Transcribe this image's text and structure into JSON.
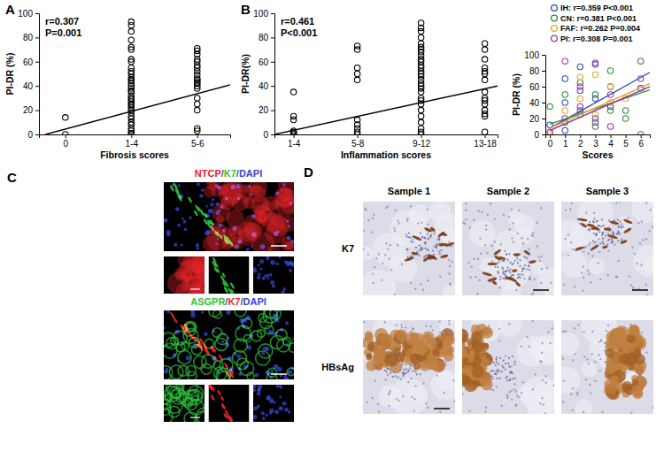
{
  "chart_data": [
    {
      "type": "scatter",
      "title": "A",
      "x_label": "Fibrosis scores",
      "y_label": "PI-DR (%)",
      "annotations": [
        "r=0.307",
        "P=0.001"
      ],
      "xlim": [
        -0.4,
        2.5
      ],
      "xticks": [
        {
          "value": 0,
          "label": "0"
        },
        {
          "value": 1,
          "label": "1-4"
        },
        {
          "value": 2,
          "label": "5-6"
        }
      ],
      "ylim": [
        0,
        100
      ],
      "yticks": [
        0,
        20,
        40,
        60,
        80,
        100
      ],
      "series": [
        {
          "type": "scatter",
          "marker": "open-circle",
          "color": "#000000",
          "x": [
            0,
            0,
            1,
            1,
            1,
            1,
            1,
            1,
            1,
            1,
            1,
            1,
            1,
            1,
            1,
            1,
            1,
            1,
            1,
            1,
            1,
            1,
            1,
            1,
            1,
            1,
            1,
            1,
            1,
            1,
            1,
            1,
            1,
            1,
            1,
            1,
            1,
            1,
            2,
            2,
            2,
            2,
            2,
            2,
            2,
            2,
            2,
            2,
            2,
            2,
            2,
            2,
            2,
            2,
            2,
            2,
            2,
            2
          ],
          "values": [
            14,
            0,
            93,
            90,
            85,
            78,
            72,
            70,
            62,
            60,
            55,
            52,
            50,
            47,
            45,
            44,
            42,
            40,
            38,
            36,
            35,
            32,
            30,
            29,
            27,
            25,
            24,
            22,
            20,
            18,
            15,
            13,
            10,
            8,
            5,
            3,
            1,
            0,
            71,
            69,
            66,
            62,
            60,
            57,
            55,
            52,
            49,
            46,
            45,
            43,
            42,
            40,
            38,
            30,
            25,
            20,
            5,
            3
          ]
        },
        {
          "type": "line",
          "color": "#000000",
          "x": [
            -0.3,
            2.5
          ],
          "values": [
            0,
            41
          ]
        }
      ]
    },
    {
      "type": "scatter",
      "title": "B",
      "x_label": "Inflammation scores",
      "y_label": "PI-DR(%)",
      "annotations": [
        "r=0.461",
        "P<0.001"
      ],
      "xlim": [
        -0.3,
        3.2
      ],
      "xticks": [
        {
          "value": 0,
          "label": "1-4"
        },
        {
          "value": 1,
          "label": "5-8"
        },
        {
          "value": 2,
          "label": "9-12"
        },
        {
          "value": 3,
          "label": "13-18"
        }
      ],
      "ylim": [
        0,
        100
      ],
      "yticks": [
        0,
        20,
        40,
        60,
        80,
        100
      ],
      "series": [
        {
          "type": "scatter",
          "marker": "open-circle",
          "color": "#000000",
          "x": [
            0,
            0,
            0,
            0,
            0,
            0,
            0,
            1,
            1,
            1,
            1,
            1,
            1,
            1,
            1,
            1,
            1,
            2,
            2,
            2,
            2,
            2,
            2,
            2,
            2,
            2,
            2,
            2,
            2,
            2,
            2,
            2,
            2,
            2,
            2,
            2,
            2,
            2,
            2,
            2,
            2,
            2,
            2,
            2,
            2,
            2,
            2,
            3,
            3,
            3,
            3,
            3,
            3,
            3,
            3,
            3,
            3,
            3,
            3,
            3,
            3,
            3
          ],
          "values": [
            35,
            15,
            12,
            3,
            2,
            1,
            0,
            73,
            70,
            55,
            50,
            45,
            12,
            8,
            5,
            2,
            0,
            92,
            88,
            85,
            80,
            75,
            72,
            70,
            68,
            65,
            62,
            60,
            57,
            55,
            52,
            50,
            48,
            45,
            42,
            40,
            38,
            35,
            30,
            28,
            25,
            20,
            15,
            10,
            5,
            2,
            0,
            75,
            70,
            62,
            55,
            52,
            50,
            45,
            35,
            30,
            28,
            25,
            20,
            17,
            15,
            2
          ]
        },
        {
          "type": "line",
          "color": "#000000",
          "x": [
            -0.3,
            3.2
          ],
          "values": [
            0,
            40
          ]
        }
      ]
    },
    {
      "type": "scatter",
      "x_label": "Scores",
      "y_label": "PI-DR (%)",
      "legend": "top-right",
      "xlim": [
        -0.3,
        6.6
      ],
      "xticks": [
        0,
        1,
        2,
        3,
        4,
        5,
        6
      ],
      "ylim": [
        0,
        100
      ],
      "yticks": [
        0,
        20,
        40,
        60,
        80,
        100
      ],
      "series": [
        {
          "name": "IH: r=0.359 P<0.001",
          "type": "scatter",
          "marker": "open-circle",
          "color": "#2f4fb8",
          "x": [
            0,
            1,
            1,
            1,
            2,
            2,
            2,
            3,
            3,
            3,
            4,
            4,
            6
          ],
          "values": [
            12,
            5,
            40,
            70,
            30,
            55,
            85,
            20,
            45,
            88,
            35,
            60,
            58
          ]
        },
        {
          "name": "CN: r=0.381 P<0.001",
          "type": "scatter",
          "marker": "open-circle",
          "color": "#2e8b3a",
          "x": [
            0,
            1,
            1,
            2,
            2,
            3,
            3,
            4,
            4,
            5,
            5,
            6,
            6
          ],
          "values": [
            35,
            15,
            50,
            25,
            65,
            10,
            50,
            30,
            80,
            30,
            20,
            92,
            0
          ]
        },
        {
          "name": "FAF: r=0.262 P=0.004",
          "type": "scatter",
          "marker": "open-circle",
          "color": "#f0a22e",
          "x": [
            0,
            1,
            2,
            2,
            3,
            3,
            4,
            4,
            5
          ],
          "values": [
            0,
            30,
            45,
            72,
            25,
            75,
            40,
            60,
            45
          ]
        },
        {
          "name": "PI: r=0.308 P=0.001",
          "type": "scatter",
          "marker": "open-circle",
          "color": "#9b3aa6",
          "x": [
            0,
            1,
            1,
            2,
            2,
            3,
            3,
            4,
            4,
            6
          ],
          "values": [
            3,
            92,
            20,
            35,
            60,
            15,
            90,
            10,
            50,
            70
          ]
        },
        {
          "type": "line",
          "color": "#2f4fb8",
          "x": [
            0,
            6.6
          ],
          "values": [
            8,
            78
          ]
        },
        {
          "type": "line",
          "color": "#2e8b3a",
          "x": [
            0,
            6.6
          ],
          "values": [
            13,
            56
          ]
        },
        {
          "type": "line",
          "color": "#f0a22e",
          "x": [
            0,
            6.6
          ],
          "values": [
            8,
            64
          ]
        },
        {
          "type": "line",
          "color": "#9b3aa6",
          "x": [
            0,
            6.6
          ],
          "values": [
            5,
            60
          ]
        }
      ]
    }
  ],
  "panels": [
    {
      "label": "C",
      "images": [
        {
          "stains": [
            {
              "text": "NTCP",
              "color": "#e8242c"
            },
            {
              "text": "K7",
              "color": "#2fc23a"
            },
            {
              "text": "DAPI",
              "color": "#3446d8"
            }
          ],
          "separator": "/"
        },
        {
          "stains": [
            {
              "text": "ASGPR",
              "color": "#2fc23a"
            },
            {
              "text": "K7",
              "color": "#e8242c"
            },
            {
              "text": "DAPI",
              "color": "#3446d8"
            }
          ],
          "separator": "/"
        }
      ]
    },
    {
      "label": "D",
      "columns": [
        "Sample 1",
        "Sample 2",
        "Sample 3"
      ],
      "rows": [
        "K7",
        "HBsAg"
      ]
    }
  ]
}
